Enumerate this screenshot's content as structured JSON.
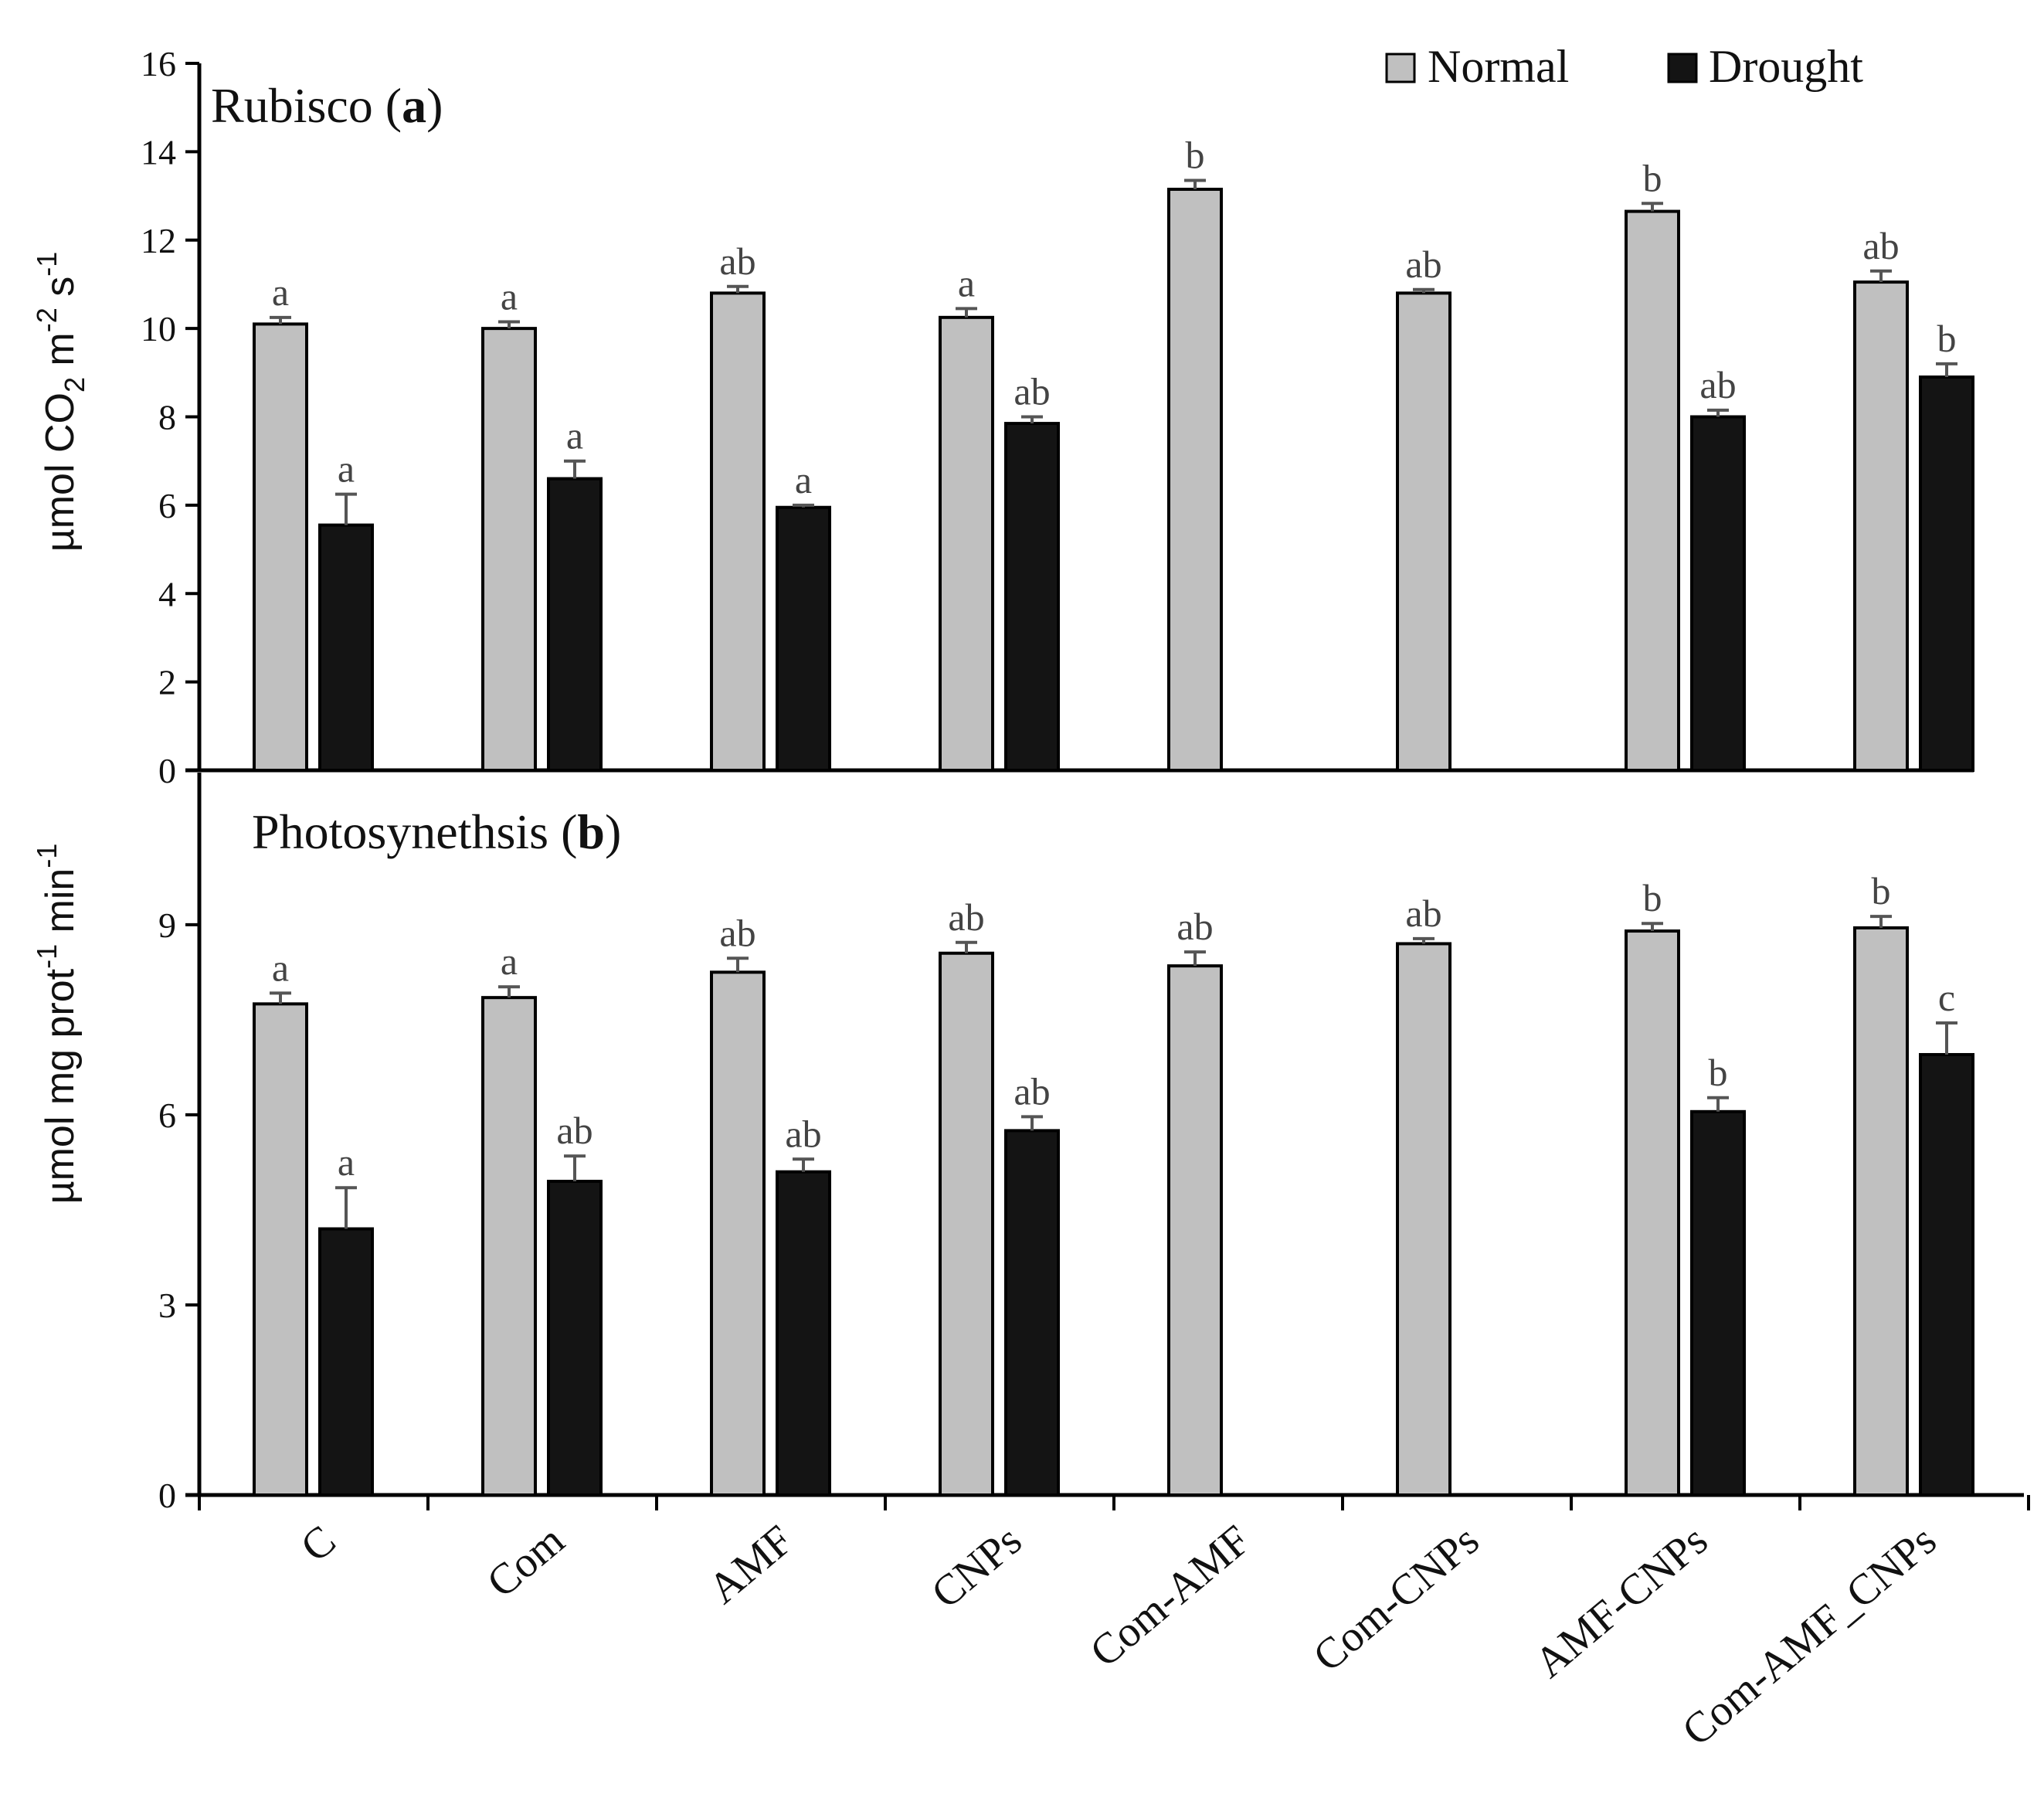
{
  "legend": {
    "normal_label": "Normal",
    "drought_label": "Drought",
    "normal_color": "#c0c0c0",
    "drought_color": "#141414"
  },
  "chart_data": [
    {
      "type": "bar",
      "panel": "a",
      "title": "Rubisco (",
      "title_letter": "a",
      "title_close": ")",
      "ylabel_parts": [
        "µmol CO",
        "2",
        " m",
        "-2",
        " s",
        "-1"
      ],
      "ylim": [
        0,
        16
      ],
      "yticks": [
        0,
        2,
        4,
        6,
        8,
        10,
        12,
        14,
        16
      ],
      "categories": [
        "C",
        "Com",
        "AMF",
        "CNPs",
        "Com-AMF",
        "Com-CNPs",
        "AMF-CNPs",
        "Com-AMF_CNPs"
      ],
      "series": [
        {
          "name": "Normal",
          "values": [
            10.1,
            10.0,
            10.8,
            10.25,
            13.15,
            10.8,
            12.65,
            11.05
          ],
          "errors": [
            0.15,
            0.15,
            0.15,
            0.2,
            0.2,
            0.08,
            0.18,
            0.25
          ],
          "labels": [
            "a",
            "a",
            "ab",
            "a",
            "b",
            "ab",
            "b",
            "ab"
          ]
        },
        {
          "name": "Drought",
          "values": [
            5.55,
            6.6,
            5.95,
            7.85,
            null,
            null,
            8.0,
            8.9
          ],
          "errors": [
            0.7,
            0.4,
            0.05,
            0.15,
            null,
            null,
            0.15,
            0.3
          ],
          "labels": [
            "a",
            "a",
            "a",
            "ab",
            "",
            "",
            "ab",
            "b"
          ]
        }
      ]
    },
    {
      "type": "bar",
      "panel": "b",
      "title": "Photosynethsis (",
      "title_letter": "b",
      "title_close": ")",
      "ylabel_parts": [
        "µmol mg prot",
        "-1",
        " min",
        "-1"
      ],
      "ylim": [
        0,
        11.4
      ],
      "yticks": [
        0,
        3,
        6,
        9
      ],
      "categories": [
        "C",
        "Com",
        "AMF",
        "CNPs",
        "Com-AMF",
        "Com-CNPs",
        "AMF-CNPs",
        "Com-AMF_CNPs"
      ],
      "series": [
        {
          "name": "Normal",
          "values": [
            7.75,
            7.85,
            8.25,
            8.55,
            8.35,
            8.7,
            8.9,
            8.95
          ],
          "errors": [
            0.17,
            0.17,
            0.22,
            0.17,
            0.22,
            0.08,
            0.12,
            0.18
          ],
          "labels": [
            "a",
            "a",
            "ab",
            "ab",
            "ab",
            "ab",
            "b",
            "b"
          ]
        },
        {
          "name": "Drought",
          "values": [
            4.2,
            4.95,
            5.1,
            5.75,
            null,
            null,
            6.05,
            6.95
          ],
          "errors": [
            0.65,
            0.4,
            0.2,
            0.22,
            null,
            null,
            0.22,
            0.5
          ],
          "labels": [
            "a",
            "ab",
            "ab",
            "ab",
            "",
            "",
            "b",
            "c"
          ]
        }
      ]
    }
  ]
}
